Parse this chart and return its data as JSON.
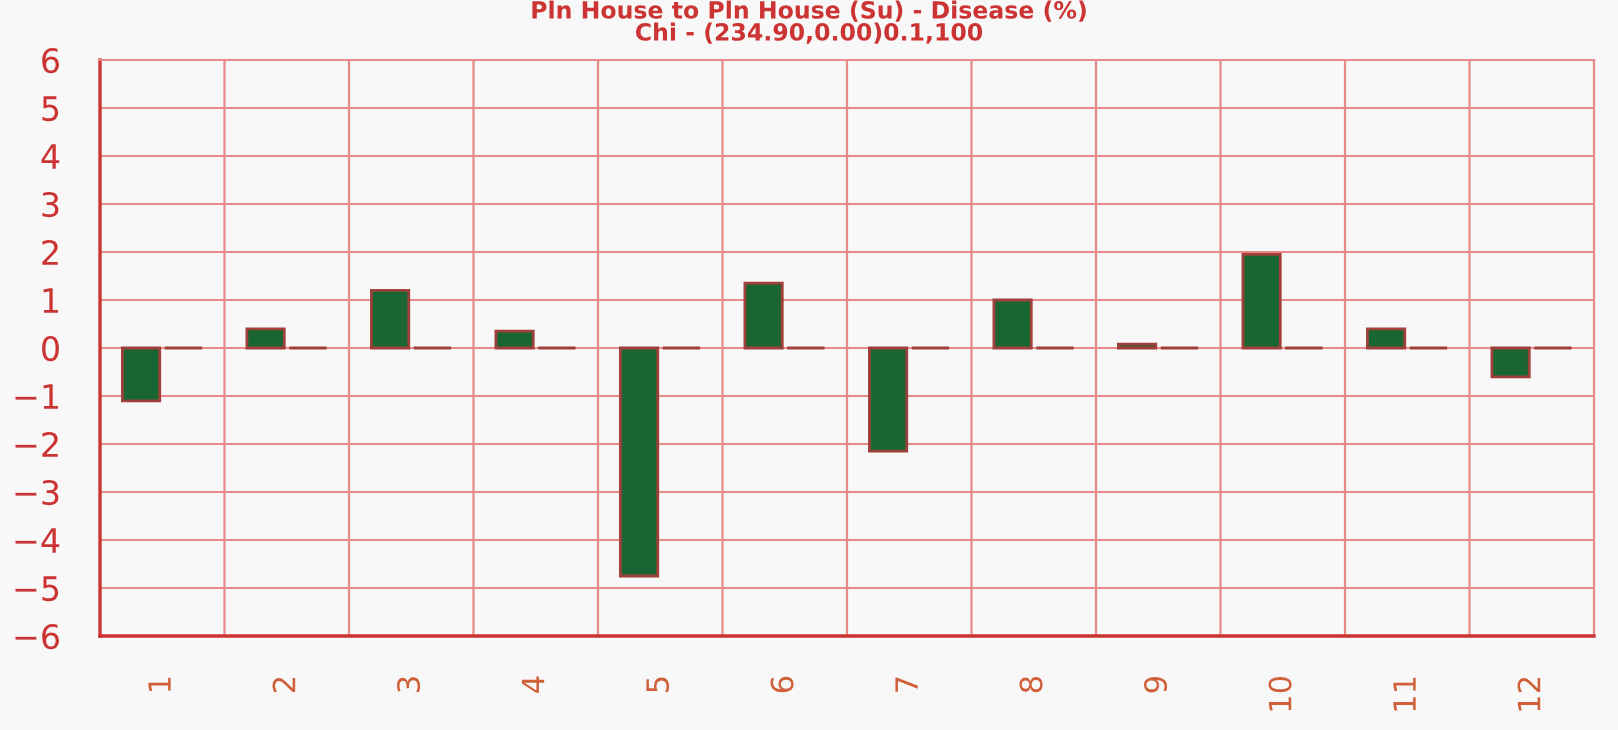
{
  "chart_data": {
    "type": "bar",
    "title": "Pln House to Pln House (Su) - Disease (%)",
    "subtitle": "Chi - (234.90,0.00)0.1,100",
    "categories": [
      "1",
      "2",
      "3",
      "4",
      "5",
      "6",
      "7",
      "8",
      "9",
      "10",
      "11",
      "12"
    ],
    "series": [
      {
        "color": "#1a6633",
        "values": [
          -1.1,
          0.4,
          1.2,
          0.35,
          -4.75,
          1.35,
          -2.15,
          1.0,
          0.08,
          1.95,
          0.4,
          -0.6
        ]
      },
      {
        "color": "#b03030",
        "values": [
          0,
          0,
          0,
          0,
          0,
          0,
          0,
          0,
          0,
          0,
          0,
          0
        ]
      }
    ],
    "ylim": [
      -6,
      6
    ],
    "yticks": [
      -6,
      -5,
      -4,
      -3,
      -2,
      -1,
      0,
      1,
      2,
      3,
      4,
      5,
      6
    ],
    "grid": true
  }
}
